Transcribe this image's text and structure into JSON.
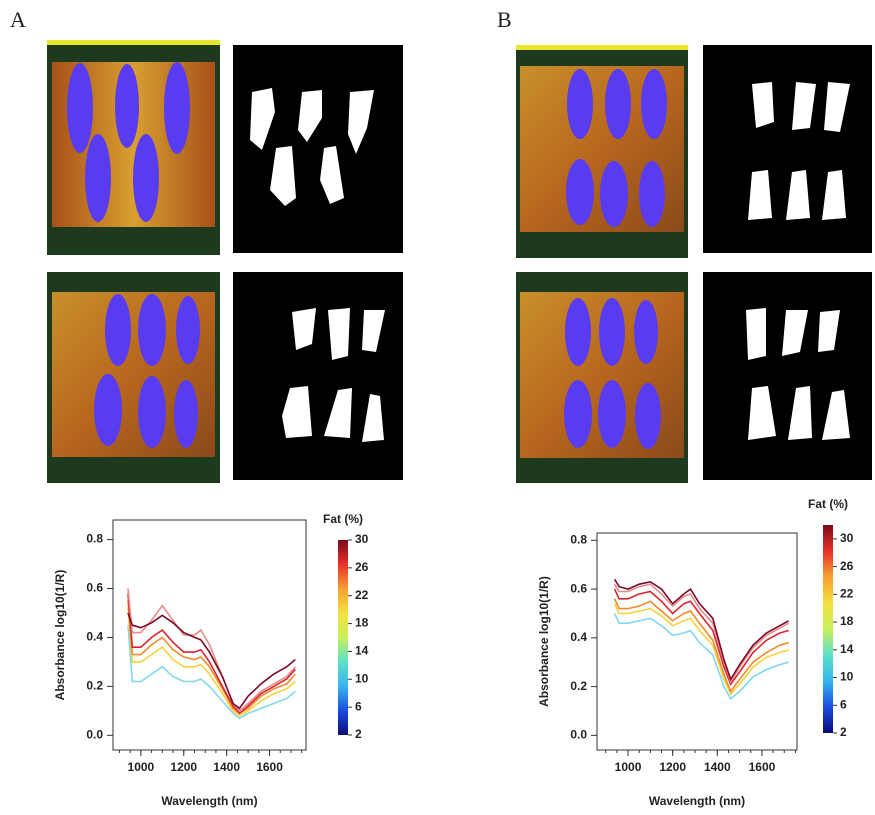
{
  "chart_data": [
    {
      "type": "line",
      "panel_label": "A",
      "y_label": "Absorbance log10(1/R)",
      "x_label": "Wavelength (nm)",
      "x": [
        940,
        960,
        1000,
        1050,
        1100,
        1150,
        1200,
        1250,
        1280,
        1320,
        1380,
        1430,
        1460,
        1500,
        1560,
        1620,
        1680,
        1720
      ],
      "xlim": [
        870,
        1770
      ],
      "xticks": [
        1000,
        1200,
        1400,
        1600
      ],
      "ylim": [
        -0.06,
        0.88
      ],
      "yticks": [
        {
          "value": 0,
          "label": "0.0"
        },
        0.2,
        0.4,
        0.6,
        0.8
      ],
      "series": [
        {
          "color": "#7fd8ef",
          "values": [
            0.45,
            0.22,
            0.22,
            0.25,
            0.28,
            0.24,
            0.22,
            0.22,
            0.23,
            0.2,
            0.14,
            0.09,
            0.07,
            0.09,
            0.11,
            0.13,
            0.15,
            0.18
          ]
        },
        {
          "color": "#f5d23c",
          "values": [
            0.52,
            0.3,
            0.3,
            0.33,
            0.36,
            0.31,
            0.28,
            0.28,
            0.29,
            0.25,
            0.17,
            0.1,
            0.08,
            0.1,
            0.14,
            0.17,
            0.19,
            0.22
          ]
        },
        {
          "color": "#f08a2a",
          "values": [
            0.55,
            0.33,
            0.33,
            0.37,
            0.4,
            0.35,
            0.32,
            0.31,
            0.32,
            0.28,
            0.19,
            0.11,
            0.09,
            0.11,
            0.16,
            0.19,
            0.21,
            0.25
          ]
        },
        {
          "color": "#d8262e",
          "values": [
            0.58,
            0.36,
            0.36,
            0.4,
            0.43,
            0.38,
            0.34,
            0.34,
            0.35,
            0.3,
            0.2,
            0.12,
            0.09,
            0.12,
            0.17,
            0.2,
            0.23,
            0.27
          ]
        },
        {
          "color": "#e88a8a",
          "values": [
            0.6,
            0.42,
            0.42,
            0.47,
            0.53,
            0.47,
            0.41,
            0.41,
            0.43,
            0.37,
            0.24,
            0.13,
            0.1,
            0.13,
            0.18,
            0.21,
            0.24,
            0.28
          ]
        },
        {
          "color": "#7a0a2a",
          "values": [
            0.5,
            0.45,
            0.44,
            0.46,
            0.49,
            0.46,
            0.42,
            0.4,
            0.39,
            0.34,
            0.24,
            0.13,
            0.11,
            0.16,
            0.21,
            0.25,
            0.28,
            0.31
          ]
        }
      ],
      "colorbar": {
        "title": "Fat (%)",
        "lim": [
          2,
          30
        ],
        "ticks": [
          2,
          6,
          10,
          14,
          18,
          22,
          26,
          30
        ],
        "colors": [
          "#0a0a7a",
          "#1a4ee0",
          "#36b4f0",
          "#5ce0c8",
          "#c8f05a",
          "#f5e040",
          "#f5a030",
          "#e8302a",
          "#7a0a1a"
        ]
      }
    },
    {
      "type": "line",
      "panel_label": "B",
      "y_label": "Absorbance log10(1/R)",
      "x_label": "Wavelength (nm)",
      "x": [
        940,
        960,
        1000,
        1050,
        1100,
        1150,
        1200,
        1250,
        1280,
        1320,
        1380,
        1430,
        1460,
        1500,
        1560,
        1620,
        1680,
        1720
      ],
      "xlim": [
        861,
        1757
      ],
      "xticks": [
        1000,
        1200,
        1400,
        1600
      ],
      "ylim": [
        -0.06,
        0.83
      ],
      "yticks": [
        {
          "value": 0,
          "label": "0.0"
        },
        0.2,
        0.4,
        0.6,
        0.8
      ],
      "series": [
        {
          "color": "#7fd8ef",
          "values": [
            0.5,
            0.46,
            0.46,
            0.47,
            0.48,
            0.45,
            0.41,
            0.42,
            0.43,
            0.38,
            0.33,
            0.2,
            0.15,
            0.18,
            0.24,
            0.27,
            0.29,
            0.3
          ]
        },
        {
          "color": "#f5d23c",
          "values": [
            0.54,
            0.5,
            0.5,
            0.51,
            0.52,
            0.49,
            0.45,
            0.47,
            0.48,
            0.43,
            0.37,
            0.23,
            0.17,
            0.21,
            0.28,
            0.32,
            0.34,
            0.35
          ]
        },
        {
          "color": "#f08a2a",
          "values": [
            0.56,
            0.52,
            0.52,
            0.53,
            0.55,
            0.51,
            0.47,
            0.5,
            0.51,
            0.46,
            0.39,
            0.25,
            0.18,
            0.23,
            0.3,
            0.34,
            0.37,
            0.38
          ]
        },
        {
          "color": "#d8262e",
          "values": [
            0.6,
            0.56,
            0.56,
            0.58,
            0.59,
            0.55,
            0.5,
            0.54,
            0.55,
            0.5,
            0.43,
            0.28,
            0.21,
            0.26,
            0.34,
            0.39,
            0.42,
            0.43
          ]
        },
        {
          "color": "#e88a8a",
          "values": [
            0.62,
            0.59,
            0.59,
            0.61,
            0.62,
            0.58,
            0.53,
            0.57,
            0.58,
            0.52,
            0.46,
            0.3,
            0.22,
            0.28,
            0.36,
            0.41,
            0.44,
            0.46
          ]
        },
        {
          "color": "#7a0a2a",
          "values": [
            0.64,
            0.61,
            0.6,
            0.62,
            0.63,
            0.6,
            0.54,
            0.58,
            0.6,
            0.54,
            0.48,
            0.31,
            0.23,
            0.29,
            0.37,
            0.42,
            0.45,
            0.47
          ]
        }
      ],
      "colorbar": {
        "title": "Fat (%)",
        "lim": [
          2,
          32
        ],
        "ticks": [
          2,
          6,
          10,
          14,
          18,
          22,
          26,
          30
        ],
        "colors": [
          "#0a0a7a",
          "#1a4ee0",
          "#36b4f0",
          "#5ce0c8",
          "#c8f05a",
          "#f5e040",
          "#f5a030",
          "#e8302a",
          "#7a0a1a"
        ]
      }
    }
  ]
}
